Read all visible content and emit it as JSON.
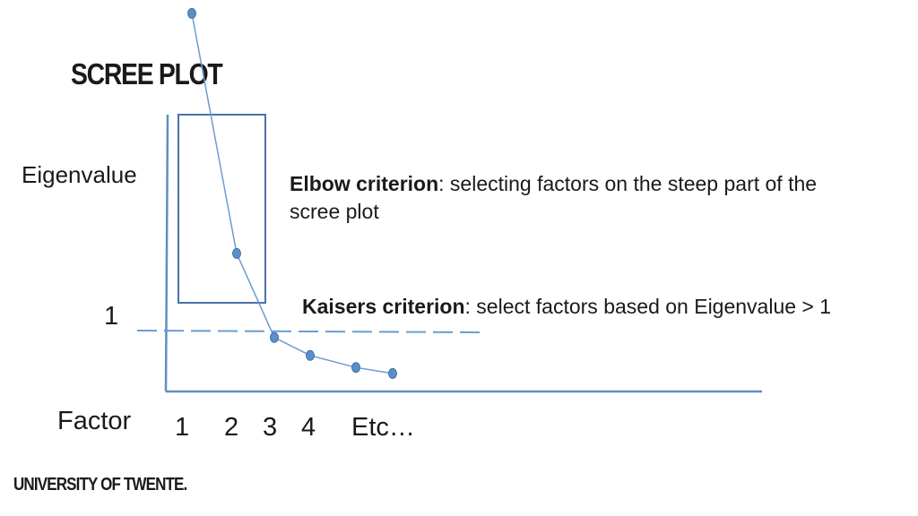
{
  "page_title": "SCREE PLOT",
  "footer_logo_text": "UNIVERSITY OF TWENTE.",
  "chart_data": {
    "type": "line",
    "ylabel": "Eigenvalue",
    "xlabel": "Factor",
    "x": [
      1,
      2,
      3,
      4,
      5,
      6
    ],
    "values": [
      6.3,
      2.3,
      0.9,
      0.6,
      0.4,
      0.3
    ],
    "xtick_labels": [
      "1",
      "2",
      "3",
      "4",
      "Etc…"
    ],
    "ytick_labels": [
      "1"
    ],
    "reference_line": {
      "y": 1,
      "style": "dashed"
    },
    "highlight_box_factors": [
      1,
      2
    ],
    "annotations": {
      "elbow": {
        "term": "Elbow criterion",
        "text": ": selecting factors on the steep part of the scree plot"
      },
      "kaiser": {
        "term": "Kaisers criterion",
        "text": ": select factors based on Eigenvalue > 1"
      }
    },
    "colors": {
      "line": "#6a9ccf",
      "marker": "#5b8fc7",
      "marker_edge": "#3f6fa6",
      "axis": "#5b8fc7",
      "box": "#4a72a8"
    }
  }
}
